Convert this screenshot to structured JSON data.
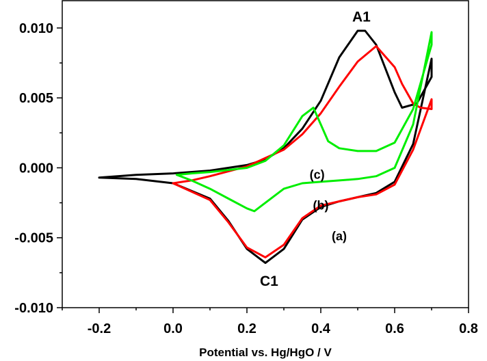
{
  "chart_data": {
    "type": "line",
    "title": "",
    "xlabel": "Potential vs. Hg/HgO / V",
    "ylabel": "",
    "xlim": [
      -0.3,
      0.8
    ],
    "ylim": [
      -0.01,
      0.012
    ],
    "x_ticks": [
      -0.2,
      0.0,
      0.2,
      0.4,
      0.6,
      0.8
    ],
    "x_tick_labels": [
      "-0.2",
      "0.0",
      "0.2",
      "0.4",
      "0.6",
      "0.8"
    ],
    "y_ticks": [
      0.01,
      0.005,
      0.0,
      -0.005,
      -0.01
    ],
    "y_tick_labels": [
      "0.010",
      "0.005",
      "0.000",
      "-0.005",
      "-0.010"
    ],
    "grid": false,
    "annotations": [
      {
        "text": "A1",
        "x": 0.51,
        "y": 0.0108
      },
      {
        "text": "C1",
        "x": 0.26,
        "y": -0.0081
      },
      {
        "text": "(c)",
        "x": 0.39,
        "y": -0.0005
      },
      {
        "text": "(b)",
        "x": 0.4,
        "y": -0.0027
      },
      {
        "text": "(a)",
        "x": 0.45,
        "y": -0.0049
      }
    ],
    "series": [
      {
        "color": "#000000",
        "x": [
          -0.2,
          -0.1,
          0.0,
          0.1,
          0.15,
          0.2,
          0.25,
          0.3,
          0.35,
          0.4,
          0.45,
          0.5,
          0.55,
          0.6,
          0.65,
          0.7,
          0.7,
          0.66,
          0.62,
          0.6,
          0.55,
          0.52,
          0.5,
          0.45,
          0.4,
          0.35,
          0.3,
          0.25,
          0.2,
          0.1,
          0.0,
          -0.1,
          -0.2
        ],
        "y": [
          -0.0007,
          -0.0008,
          -0.0011,
          -0.0022,
          -0.0038,
          -0.0058,
          -0.0068,
          -0.0058,
          -0.0037,
          -0.0028,
          -0.0024,
          -0.0021,
          -0.0018,
          -0.001,
          0.0017,
          0.0078,
          0.0065,
          0.0046,
          0.0043,
          0.0054,
          0.0088,
          0.0098,
          0.0098,
          0.0079,
          0.0048,
          0.0028,
          0.0014,
          0.0006,
          0.0002,
          -0.0002,
          -0.0004,
          -0.0005,
          -0.0007
        ]
      },
      {
        "color": "#ff0000",
        "x": [
          0.0,
          0.1,
          0.15,
          0.2,
          0.25,
          0.3,
          0.35,
          0.4,
          0.45,
          0.5,
          0.55,
          0.6,
          0.65,
          0.7,
          0.7,
          0.67,
          0.65,
          0.62,
          0.6,
          0.55,
          0.5,
          0.45,
          0.4,
          0.35,
          0.3,
          0.2,
          0.1,
          0.05,
          0.0
        ],
        "y": [
          -0.0011,
          -0.0023,
          -0.0039,
          -0.0057,
          -0.0064,
          -0.0055,
          -0.0036,
          -0.0027,
          -0.0024,
          -0.0021,
          -0.0019,
          -0.0012,
          0.0013,
          0.0049,
          0.0042,
          0.0043,
          0.0046,
          0.006,
          0.0072,
          0.0087,
          0.0076,
          0.0058,
          0.0039,
          0.0024,
          0.0013,
          0.0001,
          -0.0006,
          -0.0009,
          -0.0011
        ]
      },
      {
        "color": "#00ee00",
        "x": [
          0.01,
          0.05,
          0.1,
          0.15,
          0.2,
          0.22,
          0.25,
          0.3,
          0.35,
          0.4,
          0.45,
          0.5,
          0.55,
          0.6,
          0.65,
          0.7,
          0.7,
          0.65,
          0.6,
          0.55,
          0.5,
          0.45,
          0.42,
          0.4,
          0.38,
          0.35,
          0.3,
          0.25,
          0.2,
          0.1,
          0.05,
          0.01
        ],
        "y": [
          -0.0005,
          -0.0009,
          -0.0015,
          -0.0022,
          -0.0029,
          -0.0031,
          -0.0025,
          -0.0015,
          -0.0011,
          -0.001,
          -0.0009,
          -0.0008,
          -0.0006,
          0.0,
          0.0031,
          0.0097,
          0.0088,
          0.0042,
          0.0018,
          0.0012,
          0.0012,
          0.0014,
          0.0019,
          0.0031,
          0.0043,
          0.0037,
          0.0016,
          0.0005,
          0.0,
          -0.0003,
          -0.0004,
          -0.0005
        ]
      }
    ]
  }
}
